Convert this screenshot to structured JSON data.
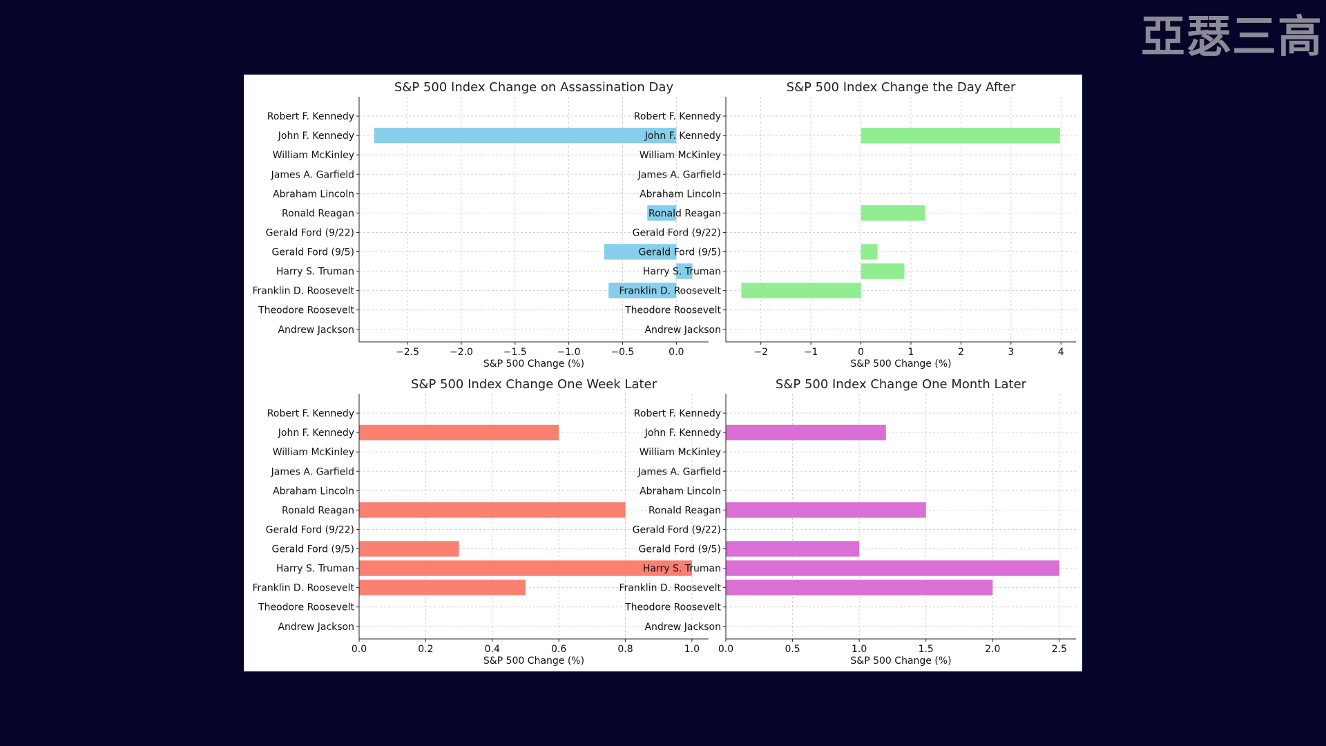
{
  "watermark": "亞瑟三高",
  "chart_data": [
    {
      "type": "bar",
      "orientation": "horizontal",
      "title": "S&P 500 Index Change on Assassination Day",
      "xlabel": "S&P 500 Change (%)",
      "xlim": [
        -2.95,
        0.3
      ],
      "xticks": [
        -2.5,
        -2.0,
        -1.5,
        -1.0,
        -0.5,
        0.0
      ],
      "xtick_labels": [
        "−2.5",
        "−2.0",
        "−1.5",
        "−1.0",
        "−0.5",
        "0.0"
      ],
      "color": "#87ceeb",
      "grid": true,
      "categories": [
        "Robert F. Kennedy",
        "John F. Kennedy",
        "William McKinley",
        "James A. Garfield",
        "Abraham Lincoln",
        "Ronald Reagan",
        "Gerald Ford (9/22)",
        "Gerald Ford (9/5)",
        "Harry S. Truman",
        "Franklin D. Roosevelt",
        "Theodore Roosevelt",
        "Andrew Jackson"
      ],
      "values": [
        null,
        -2.81,
        null,
        null,
        null,
        -0.27,
        null,
        -0.67,
        0.15,
        -0.63,
        null,
        null
      ]
    },
    {
      "type": "bar",
      "orientation": "horizontal",
      "title": "S&P 500 Index Change the Day After",
      "xlabel": "S&P 500 Change (%)",
      "xlim": [
        -2.7,
        4.3
      ],
      "xticks": [
        -2,
        -1,
        0,
        1,
        2,
        3,
        4
      ],
      "xtick_labels": [
        "−2",
        "−1",
        "0",
        "1",
        "2",
        "3",
        "4"
      ],
      "color": "#90ee90",
      "grid": true,
      "categories": [
        "Robert F. Kennedy",
        "John F. Kennedy",
        "William McKinley",
        "James A. Garfield",
        "Abraham Lincoln",
        "Ronald Reagan",
        "Gerald Ford (9/22)",
        "Gerald Ford (9/5)",
        "Harry S. Truman",
        "Franklin D. Roosevelt",
        "Theodore Roosevelt",
        "Andrew Jackson"
      ],
      "values": [
        null,
        3.98,
        null,
        null,
        null,
        1.28,
        null,
        0.33,
        0.87,
        -2.39,
        null,
        null
      ]
    },
    {
      "type": "bar",
      "orientation": "horizontal",
      "title": "S&P 500 Index Change One Week Later",
      "xlabel": "S&P 500 Change (%)",
      "xlim": [
        0,
        1.05
      ],
      "xticks": [
        0.0,
        0.2,
        0.4,
        0.6,
        0.8,
        1.0
      ],
      "xtick_labels": [
        "0.0",
        "0.2",
        "0.4",
        "0.6",
        "0.8",
        "1.0"
      ],
      "color": "#fa8072",
      "grid": true,
      "categories": [
        "Robert F. Kennedy",
        "John F. Kennedy",
        "William McKinley",
        "James A. Garfield",
        "Abraham Lincoln",
        "Ronald Reagan",
        "Gerald Ford (9/22)",
        "Gerald Ford (9/5)",
        "Harry S. Truman",
        "Franklin D. Roosevelt",
        "Theodore Roosevelt",
        "Andrew Jackson"
      ],
      "values": [
        null,
        0.6,
        null,
        null,
        null,
        0.8,
        null,
        0.3,
        1.0,
        0.5,
        null,
        null
      ]
    },
    {
      "type": "bar",
      "orientation": "horizontal",
      "title": "S&P 500 Index Change One Month Later",
      "xlabel": "S&P 500 Change (%)",
      "xlim": [
        0,
        2.625
      ],
      "xticks": [
        0.0,
        0.5,
        1.0,
        1.5,
        2.0,
        2.5
      ],
      "xtick_labels": [
        "0.0",
        "0.5",
        "1.0",
        "1.5",
        "2.0",
        "2.5"
      ],
      "color": "#da70d6",
      "grid": true,
      "categories": [
        "Robert F. Kennedy",
        "John F. Kennedy",
        "William McKinley",
        "James A. Garfield",
        "Abraham Lincoln",
        "Ronald Reagan",
        "Gerald Ford (9/22)",
        "Gerald Ford (9/5)",
        "Harry S. Truman",
        "Franklin D. Roosevelt",
        "Theodore Roosevelt",
        "Andrew Jackson"
      ],
      "values": [
        null,
        1.2,
        null,
        null,
        null,
        1.5,
        null,
        1.0,
        2.5,
        2.0,
        null,
        null
      ]
    }
  ]
}
